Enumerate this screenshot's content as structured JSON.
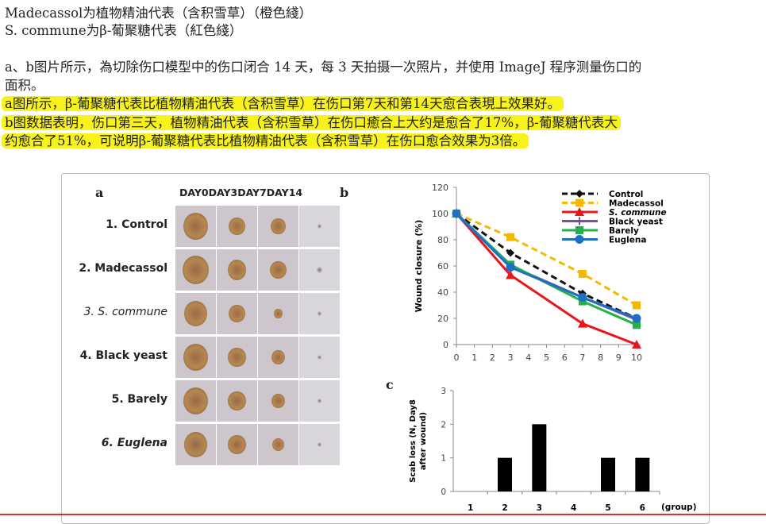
{
  "text": {
    "line1": "Madecassol为植物精油代表（含积雪草）（橙色綫）",
    "line2": "S. commune为β-葡聚糖代表（紅色綫）",
    "line3": "a、b图片所示，為切除伤口模型中的伤口闭合 14 天，每 3 天拍摄一次照片，并使用 ImageJ 程序测量伤口的",
    "line4": "面积。",
    "hl1": "a图所示，β-葡聚糖代表比植物精油代表（含积雪草）在伤口第7天和第14天愈合表現上效果好。",
    "hl2": "b图数据表明，伤口第三天，植物精油代表（含积雪草）在伤口癒合上大约是愈合了17%，β-葡聚糖代表大",
    "hl3": "约愈合了51%，可说明β-葡聚糖代表比植物精油代表（含积雪草）在伤口愈合效果为3倍。"
  },
  "figure": {
    "panel_a": "a",
    "panel_b": "b",
    "panel_c": "c",
    "days_header": "DAY0DAY3DAY7DAY14",
    "rows": [
      "1. Control",
      "2. Madecassol",
      "3. S. commune",
      "4. Black yeast",
      "5. Barely",
      "6. Euglena"
    ],
    "wound_sizes": [
      [
        0.9,
        0.6,
        0.55,
        0.15
      ],
      [
        0.95,
        0.7,
        0.6,
        0.2
      ],
      [
        0.85,
        0.6,
        0.3,
        0.15
      ],
      [
        0.9,
        0.65,
        0.5,
        0.15
      ],
      [
        0.9,
        0.65,
        0.5,
        0.15
      ],
      [
        0.85,
        0.65,
        0.45,
        0.15
      ]
    ]
  },
  "chart_data": [
    {
      "type": "line",
      "xlabel": "",
      "ylabel": "Wound closure (%)",
      "xlim": [
        0,
        10
      ],
      "ylim": [
        0,
        120
      ],
      "xticks": [
        0,
        1,
        2,
        3,
        4,
        5,
        6,
        7,
        8,
        9,
        10
      ],
      "yticks": [
        0,
        20,
        40,
        60,
        80,
        100,
        120
      ],
      "x": [
        0,
        3,
        7,
        10
      ],
      "legend_placement": "top-right",
      "series": [
        {
          "name": "Control",
          "values": [
            100,
            70,
            39,
            20
          ],
          "color": "#111111",
          "dash": true,
          "marker": "diamond"
        },
        {
          "name": "Madecassol",
          "values": [
            100,
            82,
            54,
            30
          ],
          "color": "#f5b800",
          "dash": true,
          "marker": "square"
        },
        {
          "name": "S. commune",
          "values": [
            100,
            53,
            16,
            0
          ],
          "color": "#e8161b",
          "dash": false,
          "marker": "triangle"
        },
        {
          "name": "Black yeast",
          "values": [
            100,
            60,
            36,
            19
          ],
          "color": "#7a4fa0",
          "dash": false,
          "marker": "plus"
        },
        {
          "name": "Barely",
          "values": [
            100,
            61,
            33,
            15
          ],
          "color": "#22b14c",
          "dash": false,
          "marker": "square"
        },
        {
          "name": "Euglena",
          "values": [
            100,
            59,
            36,
            20
          ],
          "color": "#1f6fc6",
          "dash": false,
          "marker": "circle"
        }
      ]
    },
    {
      "type": "bar",
      "categories": [
        "1",
        "2",
        "3",
        "4",
        "5",
        "6"
      ],
      "values": [
        0,
        1,
        2,
        0,
        1,
        1
      ],
      "xlabel": "(group)",
      "ylabel": "Scab loss (N, Day8 after wound)",
      "ylim": [
        0,
        3
      ],
      "yticks": [
        0,
        1,
        2,
        3
      ]
    }
  ]
}
